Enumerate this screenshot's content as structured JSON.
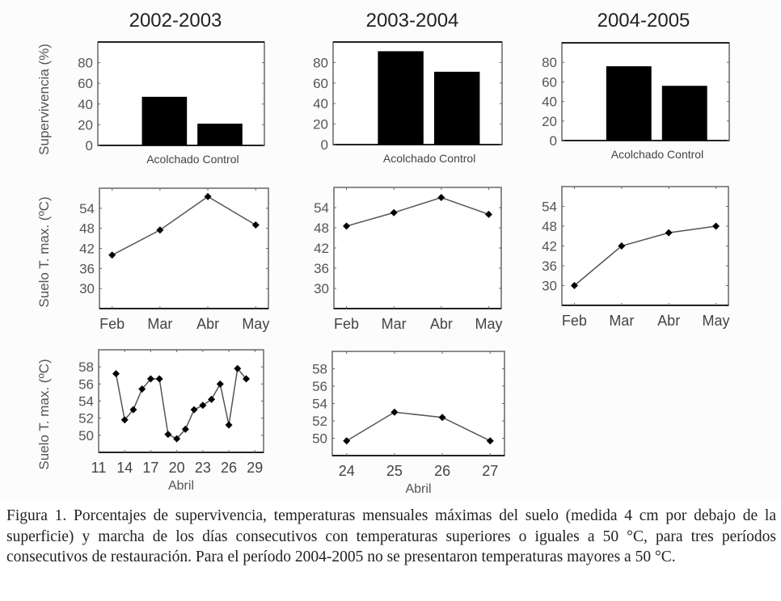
{
  "figure": {
    "caption": "Figura 1. Porcentajes de supervivencia, temperaturas mensuales máximas del suelo (medida 4 cm por debajo de la superficie) y marcha de los días consecutivos con temperaturas superiores o iguales a 50 °C, para tres períodos consecutivos de restauración. Para el período 2004-2005 no se presentaron temperaturas mayores a 50 °C.",
    "row_labels": [
      "Supervivencia (%)",
      "Suelo T. max. (ºC)",
      "Suelo T. max. (ºC)"
    ],
    "column_titles": [
      "2002-2003",
      "2003-2004",
      "2004-2005"
    ]
  },
  "chart_data": [
    {
      "id": "surv-2002",
      "type": "bar",
      "title": "2002-2003",
      "ylabel": "Supervivencia (%)",
      "xlabel": "",
      "categories": [
        "Acolchado",
        "Control"
      ],
      "values": [
        47,
        21
      ],
      "ylim": [
        0,
        100
      ],
      "yticks": [
        0,
        20,
        40,
        60,
        80
      ],
      "grid": false
    },
    {
      "id": "surv-2003",
      "type": "bar",
      "title": "2003-2004",
      "ylabel": "",
      "xlabel": "",
      "categories": [
        "Acolchado",
        "Control"
      ],
      "values": [
        91,
        71
      ],
      "ylim": [
        0,
        100
      ],
      "yticks": [
        0,
        20,
        40,
        60,
        80
      ],
      "grid": false
    },
    {
      "id": "surv-2004",
      "type": "bar",
      "title": "2004-2005",
      "ylabel": "",
      "xlabel": "",
      "categories": [
        "Acolchado",
        "Control"
      ],
      "values": [
        76,
        56
      ],
      "ylim": [
        0,
        100
      ],
      "yticks": [
        0,
        20,
        40,
        60,
        80
      ],
      "grid": false
    },
    {
      "id": "month-2002",
      "type": "line",
      "title": "",
      "ylabel": "Suelo T. max. (ºC)",
      "xlabel": "",
      "categories": [
        "Feb",
        "Mar",
        "Abr",
        "May"
      ],
      "values": [
        40,
        47.5,
        57.5,
        49
      ],
      "ylim": [
        24,
        60
      ],
      "yticks": [
        30,
        36,
        42,
        48,
        54
      ],
      "grid": false
    },
    {
      "id": "month-2003",
      "type": "line",
      "title": "",
      "ylabel": "",
      "xlabel": "",
      "categories": [
        "Feb",
        "Mar",
        "Abr",
        "May"
      ],
      "values": [
        48.5,
        52.5,
        57,
        52
      ],
      "ylim": [
        24,
        60
      ],
      "yticks": [
        30,
        36,
        42,
        48,
        54
      ],
      "grid": false
    },
    {
      "id": "month-2004",
      "type": "line",
      "title": "",
      "ylabel": "",
      "xlabel": "",
      "categories": [
        "Feb",
        "Mar",
        "Abr",
        "May"
      ],
      "values": [
        30,
        42,
        46,
        48
      ],
      "ylim": [
        24,
        60
      ],
      "yticks": [
        30,
        36,
        42,
        48,
        54
      ],
      "grid": false
    },
    {
      "id": "daily-2002",
      "type": "line",
      "title": "",
      "ylabel": "Suelo T. max. (ºC)",
      "xlabel": "Abril",
      "x": [
        13,
        14,
        15,
        16,
        17,
        18,
        19,
        20,
        21,
        22,
        23,
        24,
        25,
        26,
        27,
        28
      ],
      "values": [
        57.2,
        51.8,
        53.0,
        55.4,
        56.6,
        56.6,
        50.1,
        49.6,
        50.7,
        53.0,
        53.5,
        54.2,
        56.0,
        51.2,
        57.8,
        56.6
      ],
      "xlim": [
        11,
        30
      ],
      "xticks": [
        11,
        14,
        17,
        20,
        23,
        26,
        29
      ],
      "ylim": [
        48,
        60
      ],
      "yticks": [
        50,
        52,
        54,
        56,
        58
      ],
      "grid": false
    },
    {
      "id": "daily-2003",
      "type": "line",
      "title": "",
      "ylabel": "",
      "xlabel": "Abril",
      "x": [
        24,
        25,
        26,
        27
      ],
      "values": [
        49.7,
        53.0,
        52.4,
        49.7
      ],
      "xlim": [
        23.7,
        27.3
      ],
      "xticks": [
        24,
        25,
        26,
        27
      ],
      "ylim": [
        48,
        60
      ],
      "yticks": [
        50,
        52,
        54,
        56,
        58
      ],
      "grid": false
    }
  ]
}
